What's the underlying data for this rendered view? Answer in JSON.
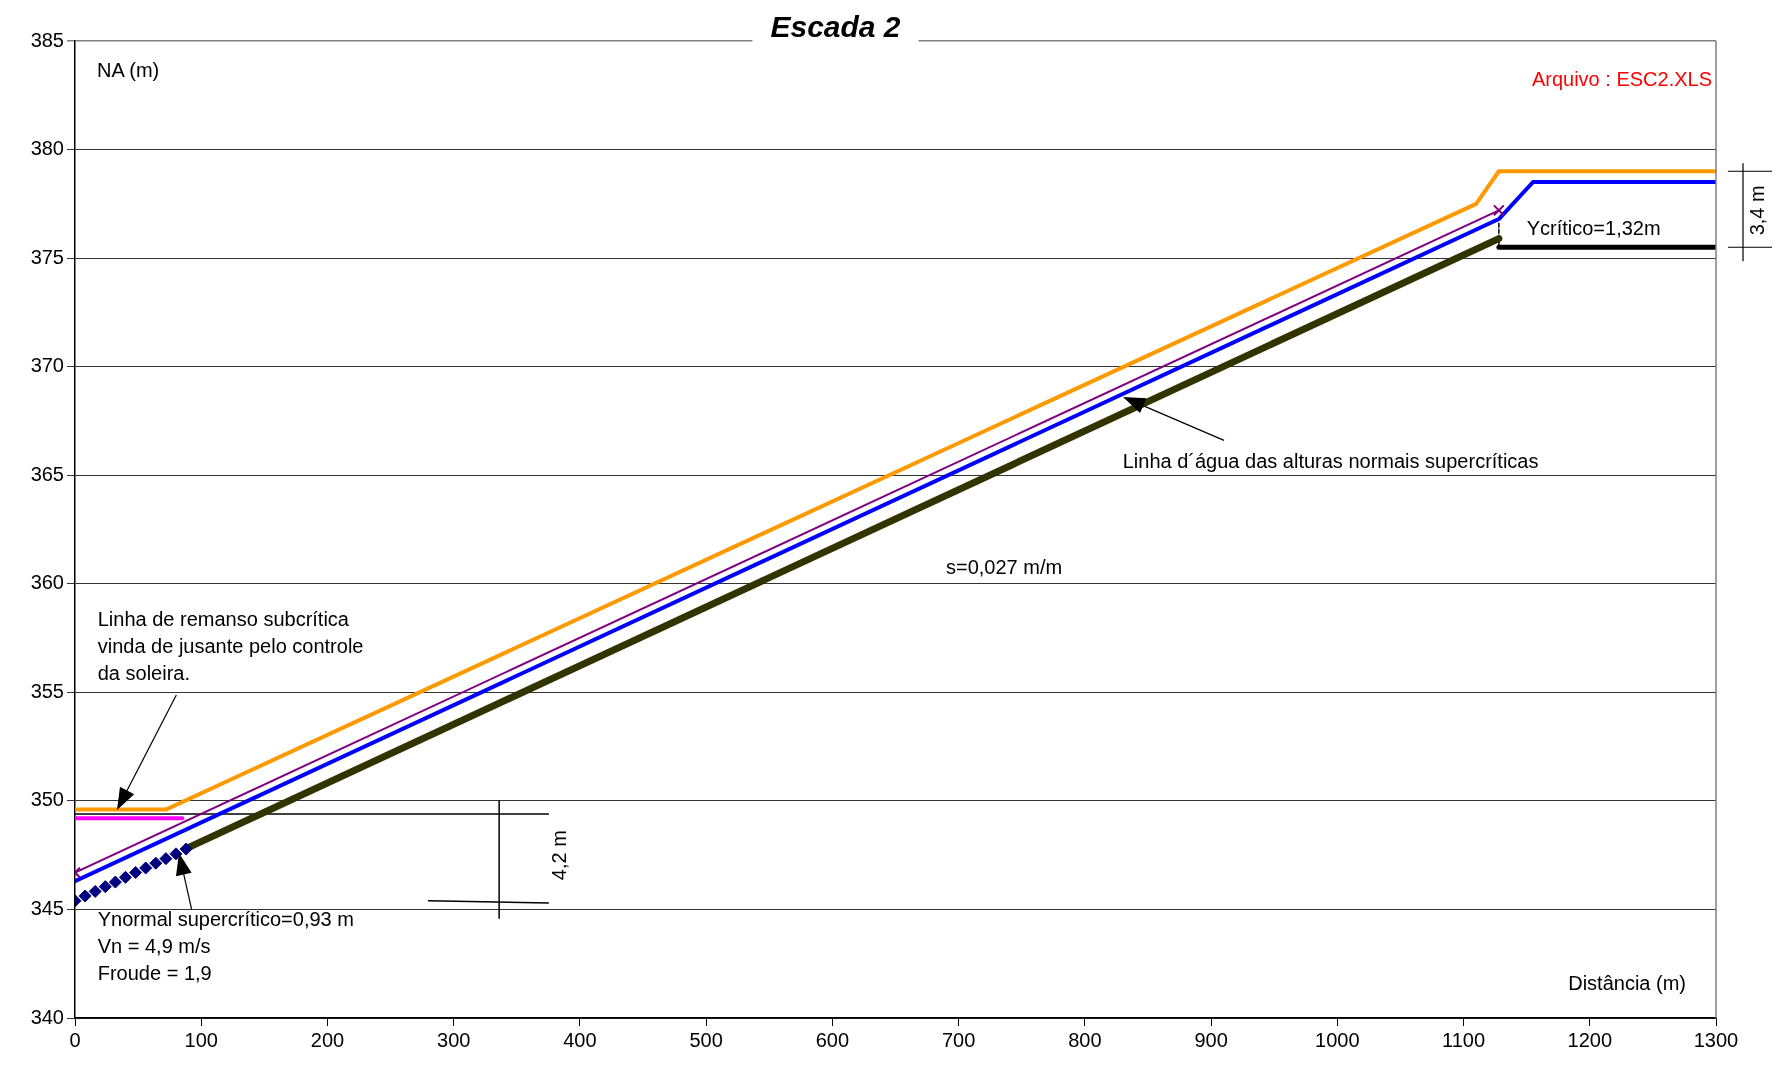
{
  "chart_data": {
    "type": "line",
    "title": "Escada 2",
    "xlabel": "Distância (m)",
    "ylabel": "NA (m)",
    "xlim": [
      0,
      1300
    ],
    "xticks": [
      0,
      100,
      200,
      300,
      400,
      500,
      600,
      700,
      800,
      900,
      1000,
      1100,
      1200,
      1300
    ],
    "ylim": [
      340,
      385
    ],
    "yticks": [
      340,
      345,
      350,
      355,
      360,
      365,
      370,
      375,
      380,
      385
    ],
    "grid": "y",
    "legend": false,
    "series": [
      {
        "color": "#ff9900",
        "x": [
          0,
          72,
          1110,
          1128,
          1300
        ],
        "values": [
          349.6,
          349.6,
          377.5,
          379.0,
          379.0
        ]
      },
      {
        "type": "line",
        "color": "#ff00ff",
        "x": [
          0,
          85
        ],
        "values": [
          349.2,
          349.2
        ]
      },
      {
        "type": "line",
        "color": "#800080",
        "marker": "cross",
        "x": [
          0,
          1128
        ],
        "values": [
          346.7,
          377.2
        ]
      },
      {
        "type": "line",
        "color": "#0000ff",
        "x": [
          0,
          1128,
          1155,
          1300
        ],
        "values": [
          346.3,
          376.8,
          378.5,
          378.5
        ]
      },
      {
        "type": "line",
        "color": "#333300",
        "x": [
          88,
          1128
        ],
        "values": [
          347.8,
          375.9
        ]
      },
      {
        "type": "scatter",
        "color": "#000080",
        "marker": "diamond",
        "x": [
          0,
          8,
          16,
          24,
          32,
          40,
          48,
          56,
          64,
          72,
          80,
          88
        ],
        "values": [
          345.4,
          345.62,
          345.83,
          346.05,
          346.26,
          346.48,
          346.7,
          346.91,
          347.13,
          347.34,
          347.56,
          347.78
        ]
      },
      {
        "type": "line",
        "color": "#000000",
        "x": [
          1128,
          1300
        ],
        "values": [
          375.5,
          375.5
        ]
      },
      {
        "type": "line",
        "color": "#000000",
        "line_style": "dashed",
        "x": [
          1128,
          1128
        ],
        "values": [
          376.6,
          375.5
        ]
      },
      {
        "type": "line",
        "color": "#000000",
        "x": [
          0,
          375
        ],
        "values": [
          349.4,
          349.4
        ]
      },
      {
        "type": "line",
        "color": "#000000",
        "x": [
          280,
          375
        ],
        "values": [
          345.4,
          345.3
        ]
      },
      {
        "type": "line",
        "color": "#000000",
        "x": [
          336,
          336
        ],
        "values": [
          350.0,
          344.6
        ]
      }
    ],
    "annotations": [
      "Arquivo : ESC2.XLS",
      {
        "text": "Linha d´água das alturas normais supercríticas",
        "x": 830,
        "y": 368.6
      },
      "s=0,027 m/m",
      "Linha de remanso subcrítica\nvinda de jusante pelo controle\nda soleira.",
      "Ynormal supercrítico=0,93 m\nVn = 4,9 m/s\nFroude = 1,9",
      "Ycrítico=1,32m",
      "4,2 m",
      "3,4 m"
    ]
  }
}
